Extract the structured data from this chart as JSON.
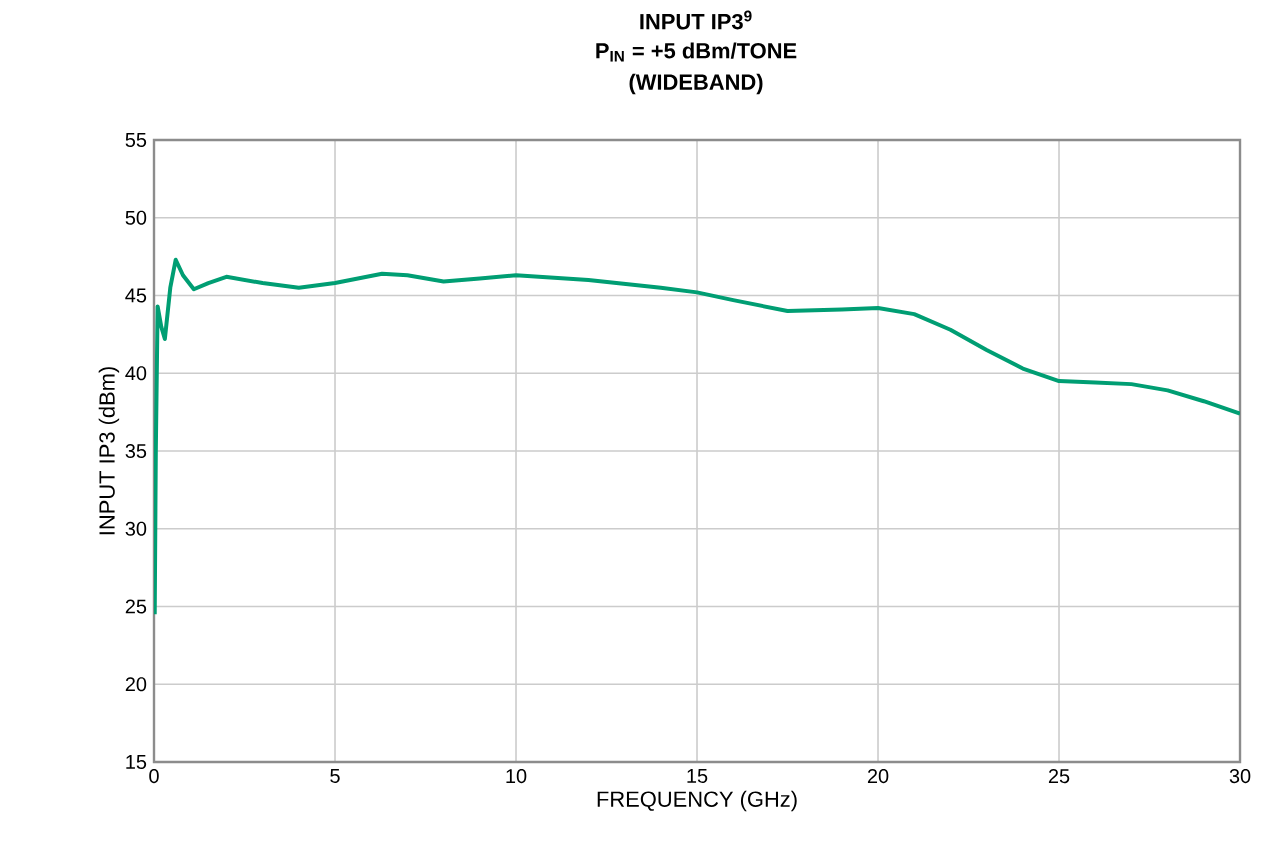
{
  "chart_data": {
    "type": "line",
    "title": "INPUT IP3$^{9}$",
    "subtitle": "P$_{IN}$ = +5 dBm/TONE",
    "annotations": [
      "(WIDEBAND)"
    ],
    "xlabel": "FREQUENCY (GHz)",
    "ylabel": "INPUT IP3 (dBm)",
    "x": [
      0.02,
      0.05,
      0.1,
      0.2,
      0.3,
      0.45,
      0.6,
      0.8,
      1.1,
      1.5,
      2,
      3,
      4,
      5,
      6.3,
      7,
      8,
      9,
      10,
      12,
      14,
      15,
      16,
      17.5,
      19,
      20,
      21,
      22,
      23,
      24,
      25,
      26,
      27,
      28,
      29,
      30
    ],
    "series": [
      {
        "color": "#009e73",
        "values": [
          24.5,
          35,
          44.3,
          43,
          42.2,
          45.5,
          47.3,
          46.3,
          45.4,
          45.8,
          46.2,
          45.8,
          45.5,
          45.8,
          46.4,
          46.3,
          45.9,
          46.1,
          46.3,
          46.0,
          45.5,
          45.2,
          44.7,
          44.0,
          44.1,
          44.2,
          43.8,
          42.8,
          41.5,
          40.3,
          39.5,
          39.4,
          39.3,
          38.9,
          38.2,
          37.4
        ]
      }
    ],
    "xlim": [
      0,
      30
    ],
    "ylim": [
      15,
      55
    ],
    "xticks": [
      0,
      5,
      10,
      15,
      20,
      25,
      30
    ],
    "yticks": [
      15,
      20,
      25,
      30,
      35,
      40,
      45,
      50,
      55
    ],
    "grid": true,
    "marker": "none",
    "line_style": "solid"
  }
}
